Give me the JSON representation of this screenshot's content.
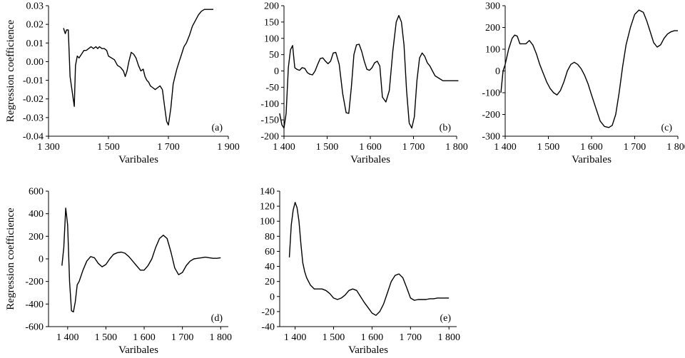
{
  "chart_data": [
    {
      "type": "line",
      "panel_label": "(a)",
      "xlabel": "Varibales",
      "ylabel": "Regression coefficience",
      "xlim": [
        1300,
        1900
      ],
      "ylim": [
        -0.04,
        0.03
      ],
      "xticks": [
        1300,
        1500,
        1700,
        1900
      ],
      "xtick_labels": [
        "1 300",
        "1 500",
        "1 700",
        "1 900"
      ],
      "yticks": [
        0.03,
        0.02,
        0.01,
        0.0,
        -0.01,
        -0.02,
        -0.03,
        -0.04
      ],
      "ytick_labels": [
        "0.03",
        "0.02",
        "0.01",
        "0.00",
        "-0.01",
        "-0.02",
        "-0.03",
        "-0.04"
      ],
      "grid": false,
      "series": [
        {
          "x": [
            1350,
            1356,
            1360,
            1366,
            1372,
            1378,
            1386,
            1390,
            1396,
            1402,
            1410,
            1418,
            1426,
            1434,
            1442,
            1450,
            1458,
            1464,
            1470,
            1478,
            1486,
            1494,
            1500,
            1510,
            1520,
            1530,
            1540,
            1550,
            1556,
            1562,
            1568,
            1576,
            1584,
            1592,
            1600,
            1608,
            1616,
            1622,
            1628,
            1634,
            1640,
            1648,
            1656,
            1664,
            1672,
            1680,
            1688,
            1694,
            1700,
            1708,
            1716,
            1722,
            1728,
            1736,
            1744,
            1752,
            1760,
            1770,
            1780,
            1790,
            1800,
            1810,
            1820,
            1830,
            1840,
            1850
          ],
          "y": [
            0.018,
            0.015,
            0.017,
            0.017,
            -0.008,
            -0.015,
            -0.024,
            -0.002,
            0.003,
            0.002,
            0.004,
            0.006,
            0.006,
            0.007,
            0.008,
            0.007,
            0.008,
            0.007,
            0.008,
            0.007,
            0.007,
            0.006,
            0.003,
            0.002,
            0.001,
            -0.002,
            -0.003,
            -0.005,
            -0.008,
            -0.005,
            0.0,
            0.005,
            0.004,
            0.002,
            -0.002,
            -0.005,
            -0.004,
            -0.008,
            -0.01,
            -0.011,
            -0.013,
            -0.014,
            -0.015,
            -0.014,
            -0.013,
            -0.015,
            -0.025,
            -0.032,
            -0.034,
            -0.025,
            -0.012,
            -0.008,
            -0.004,
            0.0,
            0.004,
            0.008,
            0.01,
            0.014,
            0.019,
            0.022,
            0.025,
            0.027,
            0.028,
            0.028,
            0.028,
            0.028
          ]
        }
      ]
    },
    {
      "type": "line",
      "panel_label": "(b)",
      "xlabel": "Varibales",
      "ylabel": "",
      "xlim": [
        1400,
        1800
      ],
      "ylim": [
        -200,
        200
      ],
      "xticks": [
        1400,
        1500,
        1600,
        1700,
        1800
      ],
      "xtick_labels": [
        "1 400",
        "1 500",
        "1 600",
        "1 700",
        "1 800"
      ],
      "yticks": [
        200,
        150,
        100,
        50,
        0,
        -50,
        -100,
        -150,
        -200
      ],
      "ytick_labels": [
        "200",
        "150",
        "100",
        "50",
        "0",
        "-50",
        "-100",
        "-150",
        "-200"
      ],
      "grid": false,
      "series": [
        {
          "x": [
            1390,
            1395,
            1400,
            1405,
            1410,
            1415,
            1420,
            1425,
            1430,
            1436,
            1442,
            1448,
            1454,
            1460,
            1466,
            1472,
            1478,
            1484,
            1490,
            1496,
            1502,
            1508,
            1514,
            1520,
            1528,
            1536,
            1544,
            1550,
            1556,
            1562,
            1568,
            1574,
            1580,
            1586,
            1592,
            1598,
            1604,
            1610,
            1616,
            1622,
            1628,
            1636,
            1644,
            1652,
            1660,
            1666,
            1672,
            1678,
            1684,
            1690,
            1696,
            1702,
            1708,
            1714,
            1720,
            1726,
            1732,
            1738,
            1744,
            1750,
            1756,
            1762,
            1768,
            1774,
            1780,
            1786,
            1792,
            1798,
            1804
          ],
          "y": [
            -130,
            -165,
            -175,
            -130,
            10,
            65,
            78,
            10,
            5,
            2,
            10,
            8,
            -5,
            -10,
            -12,
            0,
            20,
            38,
            40,
            30,
            22,
            30,
            55,
            57,
            20,
            -70,
            -128,
            -130,
            -50,
            50,
            80,
            82,
            60,
            30,
            5,
            2,
            10,
            25,
            30,
            15,
            -80,
            -95,
            -60,
            60,
            150,
            170,
            150,
            80,
            -60,
            -160,
            -175,
            -140,
            -30,
            40,
            55,
            45,
            25,
            15,
            0,
            -15,
            -20,
            -25,
            -30,
            -30,
            -30,
            -30,
            -30,
            -30,
            -30
          ]
        }
      ]
    },
    {
      "type": "line",
      "panel_label": "(c)",
      "xlabel": "Varibales",
      "ylabel": "",
      "xlim": [
        1400,
        1800
      ],
      "ylim": [
        -300,
        300
      ],
      "xticks": [
        1400,
        1500,
        1600,
        1700,
        1800
      ],
      "xtick_labels": [
        "1 400",
        "1 500",
        "1 600",
        "1 700",
        "1 800"
      ],
      "yticks": [
        300,
        200,
        100,
        0,
        -100,
        -200,
        -300
      ],
      "ytick_labels": [
        "300",
        "200",
        "100",
        "0",
        "-100",
        "-200",
        "-300"
      ],
      "grid": false,
      "series": [
        {
          "x": [
            1390,
            1395,
            1400,
            1408,
            1416,
            1422,
            1428,
            1434,
            1440,
            1448,
            1456,
            1464,
            1472,
            1480,
            1488,
            1496,
            1504,
            1512,
            1520,
            1528,
            1536,
            1544,
            1552,
            1560,
            1568,
            1576,
            1584,
            1592,
            1600,
            1610,
            1620,
            1630,
            1640,
            1648,
            1656,
            1664,
            1672,
            1680,
            1690,
            1700,
            1710,
            1720,
            1728,
            1736,
            1744,
            1752,
            1760,
            1768,
            1776,
            1784,
            1792,
            1800
          ],
          "y": [
            -100,
            0,
            30,
            100,
            150,
            165,
            160,
            125,
            125,
            125,
            140,
            120,
            80,
            30,
            -10,
            -50,
            -80,
            -100,
            -110,
            -90,
            -50,
            0,
            30,
            40,
            30,
            10,
            -20,
            -60,
            -110,
            -170,
            -230,
            -255,
            -260,
            -250,
            -200,
            -100,
            20,
            120,
            200,
            260,
            280,
            270,
            230,
            180,
            130,
            110,
            120,
            150,
            170,
            180,
            185,
            185
          ]
        }
      ]
    },
    {
      "type": "line",
      "panel_label": "(d)",
      "xlabel": "Varibales",
      "ylabel": "Regression coefficience",
      "xlim": [
        1350,
        1820
      ],
      "ylim": [
        -600,
        600
      ],
      "xticks": [
        1400,
        1500,
        1600,
        1700,
        1800
      ],
      "xtick_labels": [
        "1 400",
        "1 500",
        "1 600",
        "1 700",
        "1 800"
      ],
      "yticks": [
        600,
        400,
        200,
        0,
        -200,
        -400,
        -600
      ],
      "ytick_labels": [
        "600",
        "400",
        "200",
        "0",
        "-200",
        "-400",
        "-600"
      ],
      "grid": false,
      "series": [
        {
          "x": [
            1385,
            1390,
            1395,
            1400,
            1405,
            1410,
            1415,
            1420,
            1425,
            1430,
            1440,
            1450,
            1460,
            1470,
            1480,
            1490,
            1500,
            1510,
            1520,
            1530,
            1540,
            1550,
            1560,
            1570,
            1580,
            1590,
            1600,
            1610,
            1620,
            1630,
            1640,
            1650,
            1660,
            1670,
            1680,
            1690,
            1700,
            1710,
            1720,
            1730,
            1740,
            1750,
            1760,
            1770,
            1780,
            1790,
            1800
          ],
          "y": [
            -60,
            100,
            450,
            300,
            -200,
            -460,
            -470,
            -380,
            -230,
            -200,
            -100,
            -20,
            20,
            10,
            -40,
            -70,
            -50,
            0,
            40,
            55,
            60,
            50,
            20,
            -20,
            -60,
            -100,
            -100,
            -60,
            0,
            100,
            180,
            210,
            180,
            60,
            -80,
            -140,
            -120,
            -60,
            -20,
            0,
            5,
            10,
            15,
            10,
            5,
            5,
            10
          ]
        }
      ]
    },
    {
      "type": "line",
      "panel_label": "(e)",
      "xlabel": "Varibales",
      "ylabel": "",
      "xlim": [
        1360,
        1820
      ],
      "ylim": [
        -40,
        140
      ],
      "xticks": [
        1400,
        1500,
        1600,
        1700,
        1800
      ],
      "xtick_labels": [
        "1 400",
        "1 500",
        "1 600",
        "1 700",
        "1 800"
      ],
      "yticks": [
        140,
        120,
        100,
        80,
        60,
        40,
        20,
        0,
        -20,
        -40
      ],
      "ytick_labels": [
        "140",
        "120",
        "100",
        "80",
        "60",
        "40",
        "20",
        "0",
        "-20",
        "-40"
      ],
      "grid": false,
      "series": [
        {
          "x": [
            1385,
            1390,
            1395,
            1400,
            1405,
            1410,
            1415,
            1420,
            1425,
            1430,
            1440,
            1450,
            1460,
            1470,
            1480,
            1490,
            1500,
            1510,
            1520,
            1530,
            1540,
            1550,
            1560,
            1570,
            1580,
            1590,
            1600,
            1610,
            1620,
            1630,
            1640,
            1650,
            1660,
            1670,
            1680,
            1690,
            1700,
            1710,
            1720,
            1730,
            1740,
            1750,
            1760,
            1770,
            1780,
            1790,
            1800
          ],
          "y": [
            52,
            95,
            115,
            125,
            118,
            100,
            70,
            45,
            33,
            25,
            15,
            10,
            10,
            10,
            8,
            4,
            -2,
            -4,
            -2,
            2,
            8,
            10,
            8,
            0,
            -8,
            -15,
            -22,
            -25,
            -20,
            -10,
            5,
            20,
            28,
            30,
            25,
            12,
            -2,
            -5,
            -4,
            -4,
            -4,
            -3,
            -3,
            -2,
            -2,
            -2,
            -2
          ]
        }
      ]
    }
  ]
}
